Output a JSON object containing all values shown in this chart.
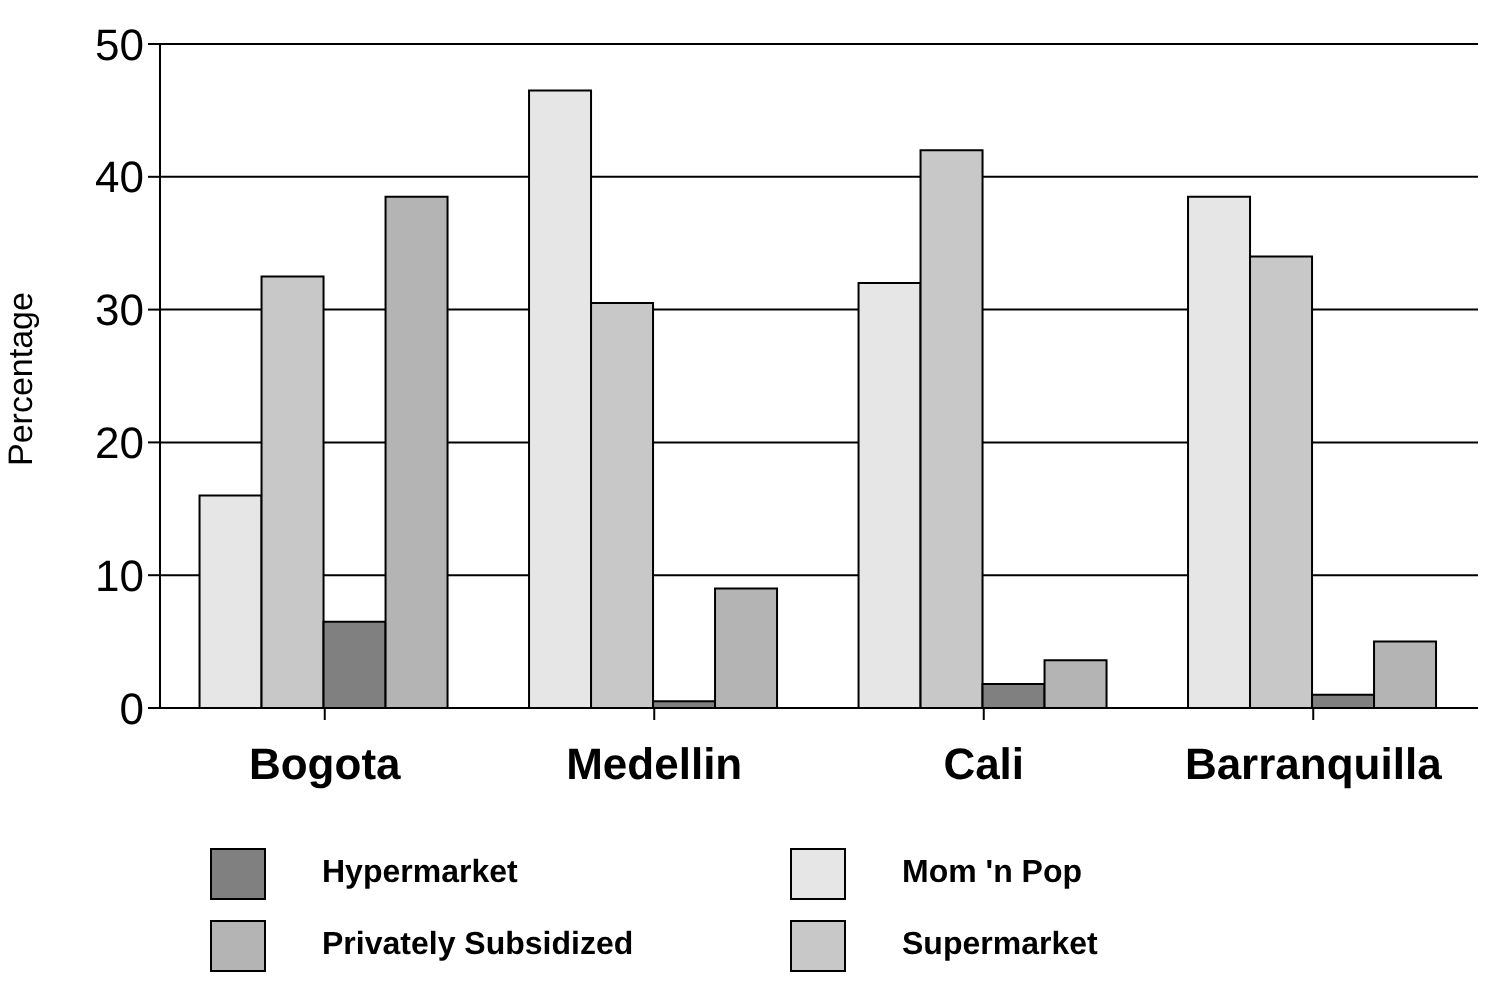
{
  "chart_data": {
    "type": "bar",
    "ylabel": "Percentage",
    "categories": [
      "Bogota",
      "Medellin",
      "Cali",
      "Barranquilla"
    ],
    "series": [
      {
        "name": "Mom 'n Pop",
        "color": "#e6e6e6",
        "values": [
          16,
          46.5,
          32,
          38.5
        ]
      },
      {
        "name": "Supermarket",
        "color": "#c8c8c8",
        "values": [
          32.5,
          30.5,
          42,
          34
        ]
      },
      {
        "name": "Hypermarket",
        "color": "#808080",
        "values": [
          6.5,
          0.5,
          1.8,
          1
        ]
      },
      {
        "name": "Privately Subsidized",
        "color": "#b4b4b4",
        "values": [
          38.5,
          9,
          3.6,
          5
        ]
      }
    ],
    "ylim": [
      0,
      50
    ],
    "yticks": [
      0,
      10,
      20,
      30,
      40,
      50
    ],
    "grid": "y",
    "legend": "bottom"
  }
}
